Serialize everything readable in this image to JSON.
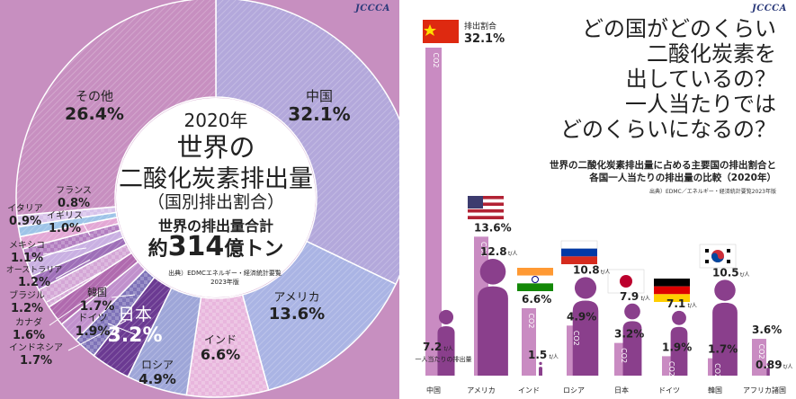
{
  "colors": {
    "accent_purple": "#8a3f8c",
    "bar_pink": "#c98bc2",
    "body_purple": "#8a3f8c"
  },
  "logo": "JCCCA",
  "chart_data": [
    {
      "type": "pie",
      "variant": "donut",
      "center": {
        "year": "2020年",
        "title_line1": "世界の",
        "title_line2": "二酸化炭素排出量",
        "subtitle": "（国別排出割合）",
        "total_label": "世界の排出量合計",
        "total_prefix": "約",
        "total_value": "314",
        "total_unit": "億トン",
        "source_line1": "出典）EDMCエネルギー・経済統計要覧",
        "source_line2": "2023年版"
      },
      "slices": [
        {
          "name": "中国",
          "value": 32.1,
          "value_label": "32.1%",
          "color": "#b3a8db"
        },
        {
          "name": "アメリカ",
          "value": 13.6,
          "value_label": "13.6%",
          "color": "#aab4e4"
        },
        {
          "name": "インド",
          "value": 6.6,
          "value_label": "6.6%",
          "color": "#e8b6dd"
        },
        {
          "name": "ロシア",
          "value": 4.9,
          "value_label": "4.9%",
          "color": "#9ea6d8"
        },
        {
          "name": "日本",
          "value": 3.2,
          "value_label": "3.2%",
          "color": "#6b3a92"
        },
        {
          "name": "ドイツ",
          "value": 1.9,
          "value_label": "1.9%",
          "color": "#7e72b8"
        },
        {
          "name": "韓国",
          "value": 1.7,
          "value_label": "1.7%",
          "color": "#c090cc"
        },
        {
          "name": "インドネシア",
          "value": 1.7,
          "value_label": "1.7%",
          "color": "#b06aae"
        },
        {
          "name": "カナダ",
          "value": 1.6,
          "value_label": "1.6%",
          "color": "#d4a6d6"
        },
        {
          "name": "ブラジル",
          "value": 1.2,
          "value_label": "1.2%",
          "color": "#9e6fb8"
        },
        {
          "name": "オーストラリア",
          "value": 1.2,
          "value_label": "1.2%",
          "color": "#c9b0e2"
        },
        {
          "name": "メキシコ",
          "value": 1.1,
          "value_label": "1.1%",
          "color": "#b27dc0"
        },
        {
          "name": "イギリス",
          "value": 1.0,
          "value_label": "1.0%",
          "color": "#e3a8d5"
        },
        {
          "name": "フランス",
          "value": 0.8,
          "value_label": "0.8%",
          "color": "#9ec4e8"
        },
        {
          "name": "イタリア",
          "value": 0.9,
          "value_label": "0.9%",
          "color": "#d7c2ea"
        },
        {
          "name": "その他",
          "value": 26.4,
          "value_label": "26.4%",
          "color": "#c78fc0"
        }
      ]
    },
    {
      "type": "bar",
      "title_lines": [
        "どの国がどのくらい",
        "二酸化炭素を",
        "出しているの？",
        "一人当たりでは",
        "どのくらいになるの？"
      ],
      "subtitle_lines": [
        "世界の二酸化炭素排出量に占める主要国の排出割合と",
        "各国一人当たりの排出量の比較（2020年）"
      ],
      "source": "出典）EDMC／エネルギー・経済統計要覧2023年版",
      "share_header": "排出割合",
      "bar_text": "CO2",
      "per_capita_note": "一人当たりの排出量",
      "per_capita_unit": "t/人",
      "categories": [
        "中国",
        "アメリカ",
        "インド",
        "ロシア",
        "日本",
        "ドイツ",
        "韓国",
        "アフリカ諸国"
      ],
      "series": [
        {
          "name": "排出割合",
          "values": [
            32.1,
            13.6,
            6.6,
            4.9,
            3.2,
            1.9,
            1.7,
            3.6
          ],
          "labels": [
            "32.1%",
            "13.6%",
            "6.6%",
            "4.9%",
            "3.2%",
            "1.9%",
            "1.7%",
            "3.6%"
          ]
        },
        {
          "name": "一人当たりの排出量",
          "values": [
            7.2,
            12.8,
            1.5,
            10.8,
            7.9,
            7.1,
            10.5,
            0.89
          ],
          "labels": [
            "7.2",
            "12.8",
            "1.5",
            "10.8",
            "7.9",
            "7.1",
            "10.5",
            "0.89"
          ]
        }
      ]
    }
  ]
}
